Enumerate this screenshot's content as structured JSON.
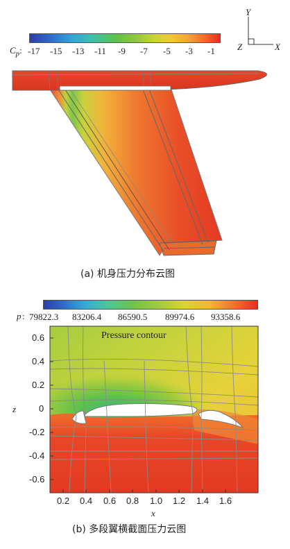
{
  "top": {
    "var_symbol": "C",
    "var_subscript": "p",
    "colorbar_ticks": [
      "-17",
      "-15",
      "-13",
      "-11",
      "-9",
      "-7",
      "-5",
      "-3",
      "-1"
    ],
    "axes": {
      "y": "Y",
      "z": "Z",
      "x": "X"
    },
    "caption": "(a) 机身压力分布云图"
  },
  "bottom": {
    "var_symbol": "p",
    "colorbar_ticks": [
      "79822.3",
      "83206.4",
      "86590.5",
      "89974.6",
      "93358.6"
    ],
    "plot_label": "Pressure contour",
    "x_axis_label": "x",
    "z_axis_label": "z",
    "x_ticks": [
      "0.2",
      "0.4",
      "0.6",
      "0.8",
      "1.0",
      "1.2",
      "1.4",
      "1.6"
    ],
    "z_ticks": [
      "0.6",
      "0.4",
      "0.2",
      "0",
      "-0.2",
      "-0.4",
      "-0.6"
    ],
    "caption": "(b) 多段翼横截面压力云图"
  },
  "colors": {
    "low": "#2b3fa8",
    "mid": "#58c24a",
    "high": "#e8341f"
  }
}
